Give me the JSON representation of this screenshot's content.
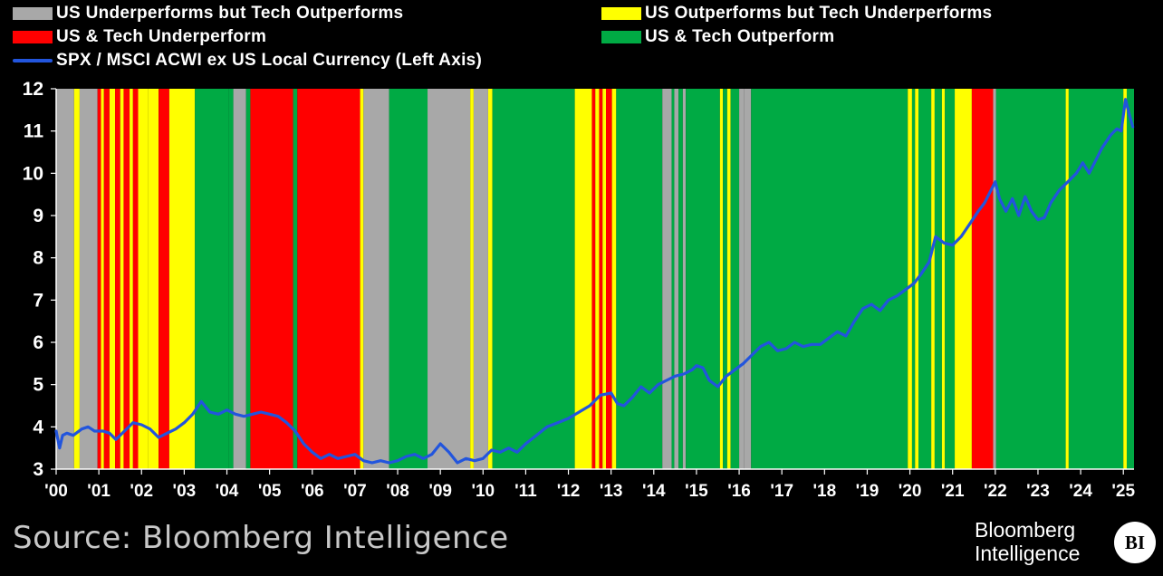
{
  "legend": {
    "gray": "US Underperforms but Tech Outperforms",
    "yellow": "US Outperforms but Tech Underperforms",
    "red": "US & Tech Underperform",
    "green": "US & Tech Outperform",
    "line": "SPX / MSCI ACWI ex US Local Currency (Left Axis)"
  },
  "colors": {
    "gray": "#a8a8a8",
    "yellow": "#ffff00",
    "red": "#ff0000",
    "green": "#00aa44",
    "line": "#2255dd",
    "background": "#000000"
  },
  "source": "Source: Bloomberg Intelligence",
  "brand": {
    "line1": "Bloomberg",
    "line2": "Intelligence",
    "badge": "BI"
  },
  "chart_data": {
    "type": "line",
    "xlabel": "",
    "ylabel": "",
    "xlim": [
      2000.0,
      2025.25
    ],
    "ylim": [
      3,
      12
    ],
    "yticks": [
      3,
      4,
      5,
      6,
      7,
      8,
      9,
      10,
      11,
      12
    ],
    "xtick_labels": [
      "'00",
      "'01",
      "'02",
      "'03",
      "'04",
      "'05",
      "'06",
      "'07",
      "'08",
      "'09",
      "'10",
      "'11",
      "'12",
      "'13",
      "'14",
      "'15",
      "'16",
      "'17",
      "'18",
      "'19",
      "'20",
      "'21",
      "'22",
      "'23",
      "'24",
      "'25"
    ],
    "grid": false,
    "legend_position": "top",
    "series": [
      {
        "name": "SPX / MSCI ACWI ex US Local Currency (Left Axis)",
        "x": [
          2000.0,
          2000.08,
          2000.15,
          2000.25,
          2000.4,
          2000.6,
          2000.75,
          2000.9,
          2001.1,
          2001.25,
          2001.4,
          2001.6,
          2001.8,
          2002.0,
          2002.2,
          2002.4,
          2002.6,
          2002.8,
          2003.0,
          2003.2,
          2003.4,
          2003.6,
          2003.8,
          2004.0,
          2004.2,
          2004.4,
          2004.6,
          2004.8,
          2005.0,
          2005.2,
          2005.4,
          2005.6,
          2005.8,
          2006.0,
          2006.2,
          2006.4,
          2006.6,
          2006.8,
          2007.0,
          2007.2,
          2007.4,
          2007.6,
          2007.8,
          2008.0,
          2008.2,
          2008.4,
          2008.6,
          2008.8,
          2009.0,
          2009.2,
          2009.4,
          2009.6,
          2009.8,
          2010.0,
          2010.2,
          2010.4,
          2010.6,
          2010.8,
          2011.0,
          2011.25,
          2011.5,
          2011.75,
          2012.0,
          2012.25,
          2012.5,
          2012.75,
          2013.0,
          2013.15,
          2013.3,
          2013.5,
          2013.7,
          2013.9,
          2014.1,
          2014.3,
          2014.5,
          2014.7,
          2014.9,
          2015.0,
          2015.15,
          2015.3,
          2015.5,
          2015.7,
          2015.9,
          2016.1,
          2016.3,
          2016.5,
          2016.7,
          2016.9,
          2017.1,
          2017.3,
          2017.5,
          2017.7,
          2017.9,
          2018.1,
          2018.3,
          2018.5,
          2018.7,
          2018.9,
          2019.1,
          2019.3,
          2019.5,
          2019.7,
          2019.9,
          2020.1,
          2020.25,
          2020.45,
          2020.6,
          2020.8,
          2021.0,
          2021.2,
          2021.4,
          2021.6,
          2021.75,
          2021.9,
          2022.0,
          2022.1,
          2022.25,
          2022.4,
          2022.55,
          2022.7,
          2022.85,
          2023.0,
          2023.15,
          2023.3,
          2023.5,
          2023.7,
          2023.9,
          2024.05,
          2024.2,
          2024.35,
          2024.5,
          2024.7,
          2024.85,
          2024.95,
          2025.05,
          2025.15,
          2025.22
        ],
        "y": [
          3.9,
          3.5,
          3.8,
          3.85,
          3.8,
          3.95,
          4.0,
          3.9,
          3.9,
          3.85,
          3.7,
          3.9,
          4.1,
          4.05,
          3.95,
          3.75,
          3.85,
          3.95,
          4.1,
          4.3,
          4.6,
          4.35,
          4.3,
          4.4,
          4.3,
          4.25,
          4.3,
          4.35,
          4.3,
          4.25,
          4.1,
          3.9,
          3.6,
          3.4,
          3.25,
          3.35,
          3.25,
          3.3,
          3.35,
          3.2,
          3.15,
          3.2,
          3.15,
          3.2,
          3.3,
          3.35,
          3.25,
          3.35,
          3.6,
          3.4,
          3.15,
          3.25,
          3.2,
          3.25,
          3.45,
          3.4,
          3.5,
          3.4,
          3.6,
          3.8,
          4.0,
          4.1,
          4.2,
          4.35,
          4.5,
          4.75,
          4.8,
          4.55,
          4.5,
          4.7,
          4.95,
          4.8,
          5.0,
          5.1,
          5.2,
          5.25,
          5.35,
          5.45,
          5.4,
          5.1,
          4.95,
          5.2,
          5.35,
          5.5,
          5.7,
          5.9,
          6.0,
          5.8,
          5.85,
          6.0,
          5.9,
          5.95,
          5.95,
          6.1,
          6.25,
          6.15,
          6.5,
          6.8,
          6.9,
          6.75,
          7.0,
          7.1,
          7.25,
          7.4,
          7.6,
          7.9,
          8.5,
          8.35,
          8.3,
          8.5,
          8.8,
          9.1,
          9.3,
          9.6,
          9.8,
          9.4,
          9.1,
          9.4,
          9.0,
          9.45,
          9.1,
          8.9,
          8.95,
          9.3,
          9.6,
          9.8,
          10.0,
          10.25,
          10.0,
          10.3,
          10.6,
          10.9,
          11.05,
          11.0,
          11.75,
          11.35,
          11.1
        ]
      }
    ],
    "regimes": [
      {
        "start": 2000.0,
        "end": 2000.42,
        "type": "gray"
      },
      {
        "start": 2000.42,
        "end": 2000.55,
        "type": "yellow"
      },
      {
        "start": 2000.55,
        "end": 2000.97,
        "type": "gray"
      },
      {
        "start": 2000.97,
        "end": 2001.05,
        "type": "red"
      },
      {
        "start": 2001.05,
        "end": 2001.12,
        "type": "yellow"
      },
      {
        "start": 2001.12,
        "end": 2001.25,
        "type": "red"
      },
      {
        "start": 2001.25,
        "end": 2001.38,
        "type": "yellow"
      },
      {
        "start": 2001.38,
        "end": 2001.5,
        "type": "red"
      },
      {
        "start": 2001.5,
        "end": 2001.58,
        "type": "yellow"
      },
      {
        "start": 2001.58,
        "end": 2001.72,
        "type": "red"
      },
      {
        "start": 2001.72,
        "end": 2001.8,
        "type": "yellow"
      },
      {
        "start": 2001.8,
        "end": 2001.92,
        "type": "red"
      },
      {
        "start": 2001.92,
        "end": 2002.15,
        "type": "yellow"
      },
      {
        "start": 2002.15,
        "end": 2002.4,
        "type": "yellow"
      },
      {
        "start": 2002.4,
        "end": 2002.65,
        "type": "red"
      },
      {
        "start": 2002.65,
        "end": 2003.25,
        "type": "yellow"
      },
      {
        "start": 2003.25,
        "end": 2004.05,
        "type": "green"
      },
      {
        "start": 2004.05,
        "end": 2004.15,
        "type": "green"
      },
      {
        "start": 2004.15,
        "end": 2004.45,
        "type": "gray"
      },
      {
        "start": 2004.45,
        "end": 2004.55,
        "type": "green"
      },
      {
        "start": 2004.55,
        "end": 2005.55,
        "type": "red"
      },
      {
        "start": 2005.55,
        "end": 2005.65,
        "type": "green"
      },
      {
        "start": 2005.65,
        "end": 2007.12,
        "type": "red"
      },
      {
        "start": 2007.12,
        "end": 2007.2,
        "type": "yellow"
      },
      {
        "start": 2007.2,
        "end": 2007.8,
        "type": "gray"
      },
      {
        "start": 2007.8,
        "end": 2008.7,
        "type": "green"
      },
      {
        "start": 2008.7,
        "end": 2009.7,
        "type": "gray"
      },
      {
        "start": 2009.7,
        "end": 2009.78,
        "type": "yellow"
      },
      {
        "start": 2009.78,
        "end": 2010.12,
        "type": "gray"
      },
      {
        "start": 2010.12,
        "end": 2010.22,
        "type": "yellow"
      },
      {
        "start": 2010.22,
        "end": 2012.15,
        "type": "green"
      },
      {
        "start": 2012.15,
        "end": 2012.55,
        "type": "yellow"
      },
      {
        "start": 2012.55,
        "end": 2012.63,
        "type": "red"
      },
      {
        "start": 2012.63,
        "end": 2012.72,
        "type": "yellow"
      },
      {
        "start": 2012.72,
        "end": 2012.8,
        "type": "red"
      },
      {
        "start": 2012.8,
        "end": 2012.88,
        "type": "yellow"
      },
      {
        "start": 2012.88,
        "end": 2013.02,
        "type": "red"
      },
      {
        "start": 2013.02,
        "end": 2013.12,
        "type": "yellow"
      },
      {
        "start": 2013.12,
        "end": 2014.2,
        "type": "green"
      },
      {
        "start": 2014.2,
        "end": 2014.42,
        "type": "gray"
      },
      {
        "start": 2014.42,
        "end": 2014.48,
        "type": "green"
      },
      {
        "start": 2014.48,
        "end": 2014.58,
        "type": "gray"
      },
      {
        "start": 2014.58,
        "end": 2014.68,
        "type": "green"
      },
      {
        "start": 2014.68,
        "end": 2014.75,
        "type": "gray"
      },
      {
        "start": 2014.75,
        "end": 2015.55,
        "type": "green"
      },
      {
        "start": 2015.55,
        "end": 2015.62,
        "type": "yellow"
      },
      {
        "start": 2015.62,
        "end": 2015.72,
        "type": "green"
      },
      {
        "start": 2015.72,
        "end": 2015.8,
        "type": "yellow"
      },
      {
        "start": 2015.8,
        "end": 2016.0,
        "type": "green"
      },
      {
        "start": 2016.0,
        "end": 2016.12,
        "type": "gray"
      },
      {
        "start": 2016.12,
        "end": 2016.28,
        "type": "gray"
      },
      {
        "start": 2016.28,
        "end": 2019.95,
        "type": "green"
      },
      {
        "start": 2019.95,
        "end": 2020.05,
        "type": "yellow"
      },
      {
        "start": 2020.05,
        "end": 2020.12,
        "type": "green"
      },
      {
        "start": 2020.12,
        "end": 2020.2,
        "type": "yellow"
      },
      {
        "start": 2020.2,
        "end": 2020.5,
        "type": "green"
      },
      {
        "start": 2020.5,
        "end": 2020.58,
        "type": "yellow"
      },
      {
        "start": 2020.58,
        "end": 2020.75,
        "type": "green"
      },
      {
        "start": 2020.75,
        "end": 2020.82,
        "type": "yellow"
      },
      {
        "start": 2020.82,
        "end": 2021.05,
        "type": "green"
      },
      {
        "start": 2021.05,
        "end": 2021.45,
        "type": "yellow"
      },
      {
        "start": 2021.45,
        "end": 2021.95,
        "type": "red"
      },
      {
        "start": 2021.95,
        "end": 2022.02,
        "type": "gray"
      },
      {
        "start": 2022.02,
        "end": 2023.65,
        "type": "green"
      },
      {
        "start": 2023.65,
        "end": 2023.72,
        "type": "yellow"
      },
      {
        "start": 2023.72,
        "end": 2025.0,
        "type": "green"
      },
      {
        "start": 2025.0,
        "end": 2025.08,
        "type": "yellow"
      },
      {
        "start": 2025.08,
        "end": 2025.25,
        "type": "green"
      }
    ]
  }
}
